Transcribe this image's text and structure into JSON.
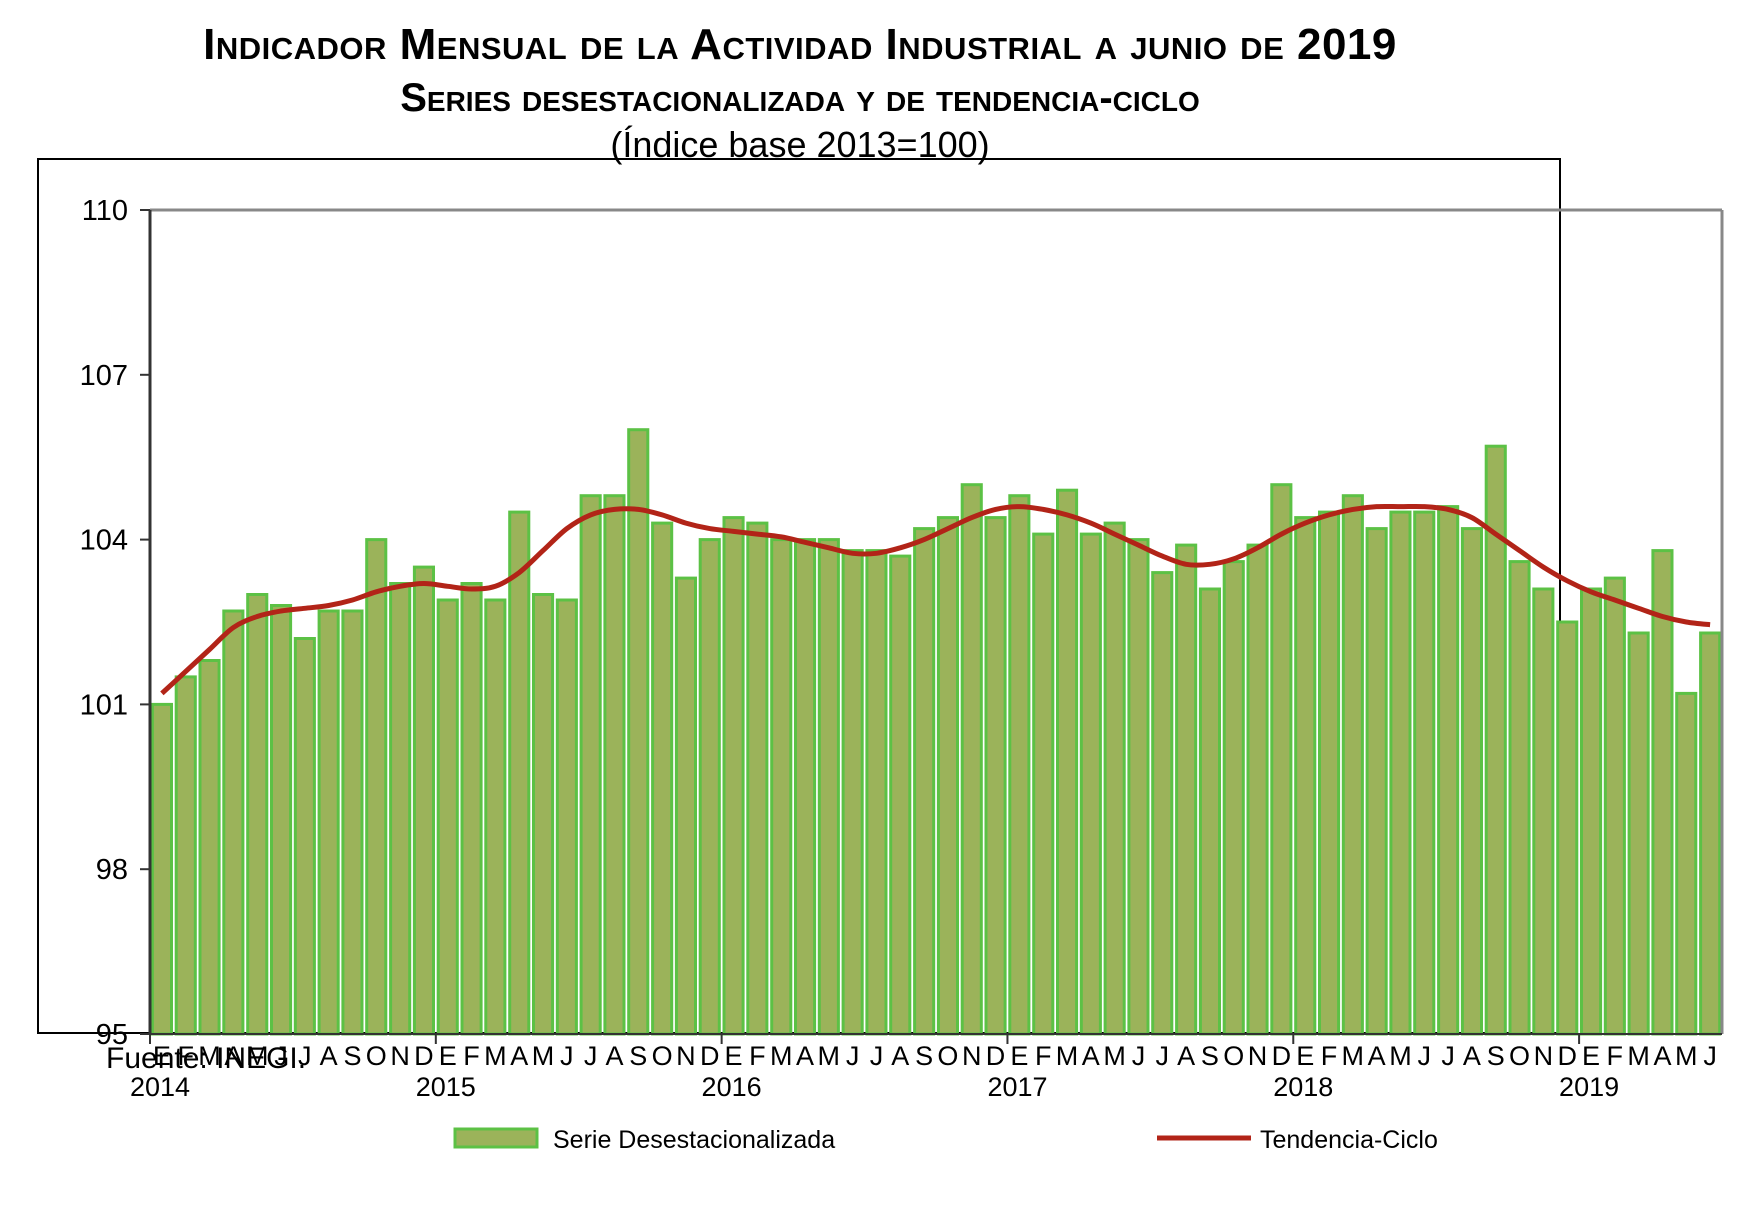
{
  "header": {
    "title_line1": "Indicador Mensual de la Actividad Industrial a junio de 2019",
    "title_line2": "Series desestacionalizada y de tendencia-ciclo",
    "subtitle": "(Índice base 2013=100)"
  },
  "footer": {
    "source": "Fuente: INEGI."
  },
  "chart_data": {
    "type": "bar",
    "title": "Indicador Mensual de la Actividad Industrial a junio de 2019 - Series desestacionalizada y de tendencia-ciclo",
    "subtitle": "(Índice base 2013=100)",
    "xlabel": "",
    "ylabel": "",
    "ylim": [
      95,
      110
    ],
    "yticks": [
      95,
      98,
      101,
      104,
      107,
      110
    ],
    "grid": false,
    "legend_position": "bottom",
    "month_labels": [
      "E",
      "F",
      "M",
      "A",
      "M",
      "J",
      "J",
      "A",
      "S",
      "O",
      "N",
      "D"
    ],
    "years": [
      "2014",
      "2015",
      "2016",
      "2017",
      "2018",
      "2019"
    ],
    "categories": [
      "2014-E",
      "2014-F",
      "2014-M",
      "2014-A",
      "2014-M",
      "2014-J",
      "2014-J",
      "2014-A",
      "2014-S",
      "2014-O",
      "2014-N",
      "2014-D",
      "2015-E",
      "2015-F",
      "2015-M",
      "2015-A",
      "2015-M",
      "2015-J",
      "2015-J",
      "2015-A",
      "2015-S",
      "2015-O",
      "2015-N",
      "2015-D",
      "2016-E",
      "2016-F",
      "2016-M",
      "2016-A",
      "2016-M",
      "2016-J",
      "2016-J",
      "2016-A",
      "2016-S",
      "2016-O",
      "2016-N",
      "2016-D",
      "2017-E",
      "2017-F",
      "2017-M",
      "2017-A",
      "2017-M",
      "2017-J",
      "2017-J",
      "2017-A",
      "2017-S",
      "2017-O",
      "2017-N",
      "2017-D",
      "2018-E",
      "2018-F",
      "2018-M",
      "2018-A",
      "2018-M",
      "2018-J",
      "2018-J",
      "2018-A",
      "2018-S",
      "2018-O",
      "2018-N",
      "2018-D",
      "2019-E",
      "2019-F",
      "2019-M",
      "2019-A",
      "2019-M",
      "2019-J"
    ],
    "series": [
      {
        "name": "Serie Desestacionalizada",
        "type": "bar",
        "color": "#9bb35a",
        "edge_color": "#5cc145",
        "values": [
          101.0,
          101.5,
          101.8,
          102.7,
          103.0,
          102.8,
          102.2,
          102.7,
          102.7,
          104.0,
          103.2,
          103.5,
          102.9,
          103.2,
          102.9,
          104.5,
          103.0,
          102.9,
          104.8,
          104.8,
          106.0,
          104.3,
          103.3,
          104.0,
          104.4,
          104.3,
          104.0,
          104.0,
          104.0,
          103.8,
          103.8,
          103.7,
          104.2,
          104.4,
          105.0,
          104.4,
          104.8,
          104.1,
          104.9,
          104.1,
          104.3,
          104.0,
          103.4,
          103.9,
          103.1,
          103.6,
          103.9,
          105.0,
          104.4,
          104.5,
          104.8,
          104.2,
          104.5,
          104.5,
          104.6,
          104.2,
          105.7,
          103.6,
          103.1,
          102.5,
          103.1,
          103.3,
          102.3,
          103.8,
          101.2,
          102.3
        ]
      },
      {
        "name": "Tendencia-Ciclo",
        "type": "line",
        "color": "#b22418",
        "values": [
          101.2,
          101.6,
          102.0,
          102.4,
          102.6,
          102.7,
          102.75,
          102.8,
          102.9,
          103.05,
          103.15,
          103.2,
          103.15,
          103.1,
          103.15,
          103.4,
          103.8,
          104.2,
          104.45,
          104.55,
          104.55,
          104.45,
          104.3,
          104.2,
          104.15,
          104.1,
          104.05,
          103.95,
          103.85,
          103.75,
          103.75,
          103.85,
          104.0,
          104.2,
          104.4,
          104.55,
          104.6,
          104.55,
          104.45,
          104.3,
          104.1,
          103.9,
          103.7,
          103.55,
          103.55,
          103.65,
          103.85,
          104.1,
          104.3,
          104.45,
          104.55,
          104.6,
          104.6,
          104.6,
          104.55,
          104.4,
          104.1,
          103.8,
          103.5,
          103.25,
          103.05,
          102.9,
          102.75,
          102.6,
          102.5,
          102.45
        ]
      }
    ]
  }
}
